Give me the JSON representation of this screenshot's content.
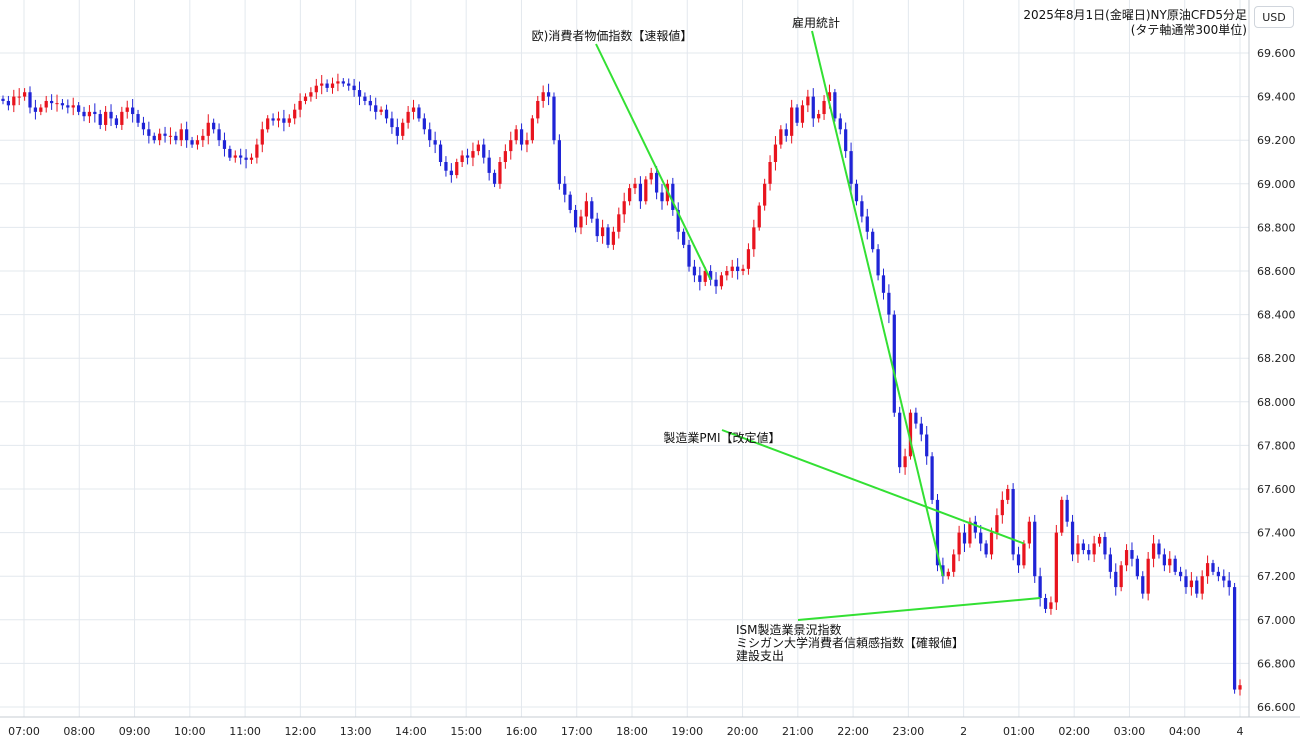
{
  "chart_data": {
    "type": "candlestick",
    "title": "2025年8月1日(金曜日)NY原油CFD5分足",
    "subtitle": "(タテ軸通常300単位)",
    "currency": "USD",
    "ylim": [
      66.6,
      69.6
    ],
    "yticks": [
      "69.600",
      "69.400",
      "69.200",
      "69.000",
      "68.800",
      "68.600",
      "68.400",
      "68.200",
      "68.000",
      "67.800",
      "67.600",
      "67.400",
      "67.200",
      "67.000",
      "66.800",
      "66.600"
    ],
    "xticks": [
      "07:00",
      "08:00",
      "09:00",
      "10:00",
      "11:00",
      "12:00",
      "13:00",
      "14:00",
      "15:00",
      "16:00",
      "17:00",
      "18:00",
      "19:00",
      "20:00",
      "21:00",
      "22:00",
      "23:00",
      "2",
      "01:00",
      "02:00",
      "03:00",
      "04:00",
      "4"
    ],
    "up_color": "#e8141e",
    "down_color": "#1f24d6",
    "annotation_color": "#33e033",
    "annotations": [
      {
        "lines": [
          "欧)消費者物価指数【速報値】"
        ],
        "target_time": "17:55"
      },
      {
        "lines": [
          "雇用統計"
        ],
        "target_time": "21:30"
      },
      {
        "lines": [
          "製造業PMI【改定値】"
        ],
        "target_time": "22:45"
      },
      {
        "lines": [
          "ISM製造業景況指数",
          "ミシガン大学消費者信頼感指数【確報値】",
          "建設支出"
        ],
        "target_time": "23:00"
      }
    ],
    "series_close": [
      69.38,
      69.36,
      69.4,
      69.4,
      69.42,
      69.35,
      69.33,
      69.35,
      69.38,
      69.37,
      69.37,
      69.36,
      69.35,
      69.36,
      69.33,
      69.31,
      69.33,
      69.32,
      69.27,
      69.33,
      69.3,
      69.27,
      69.33,
      69.35,
      69.32,
      69.28,
      69.25,
      69.22,
      69.2,
      69.23,
      69.22,
      69.22,
      69.2,
      69.25,
      69.2,
      69.18,
      69.2,
      69.22,
      69.28,
      69.25,
      69.2,
      69.16,
      69.12,
      69.13,
      69.12,
      69.11,
      69.12,
      69.18,
      69.25,
      69.3,
      69.29,
      69.3,
      69.28,
      69.3,
      69.34,
      69.38,
      69.4,
      69.42,
      69.45,
      69.46,
      69.44,
      69.46,
      69.47,
      69.46,
      69.45,
      69.43,
      69.4,
      69.38,
      69.36,
      69.33,
      69.34,
      69.3,
      69.26,
      69.22,
      69.28,
      69.33,
      69.35,
      69.3,
      69.25,
      69.2,
      69.18,
      69.1,
      69.06,
      69.04,
      69.1,
      69.13,
      69.12,
      69.15,
      69.18,
      69.12,
      69.05,
      69.0,
      69.1,
      69.15,
      69.2,
      69.25,
      69.18,
      69.2,
      69.3,
      69.38,
      69.42,
      69.4,
      69.2,
      69.0,
      68.95,
      68.88,
      68.8,
      68.85,
      68.92,
      68.84,
      68.76,
      68.8,
      68.72,
      68.78,
      68.86,
      68.92,
      68.98,
      69.0,
      68.92,
      69.02,
      69.05,
      68.96,
      68.92,
      69.0,
      68.88,
      68.78,
      68.72,
      68.62,
      68.58,
      68.55,
      68.6,
      68.56,
      68.53,
      68.58,
      68.6,
      68.62,
      68.6,
      68.61,
      68.7,
      68.8,
      68.9,
      69.0,
      69.1,
      69.18,
      69.25,
      69.22,
      69.35,
      69.28,
      69.36,
      69.4,
      69.3,
      69.32,
      69.38,
      69.42,
      69.3,
      69.25,
      69.15,
      69.0,
      68.92,
      68.85,
      68.78,
      68.7,
      68.58,
      68.5,
      68.4,
      67.95,
      67.7,
      67.75,
      67.95,
      67.9,
      67.85,
      67.75,
      67.55,
      67.25,
      67.2,
      67.22,
      67.3,
      67.4,
      67.35,
      67.45,
      67.4,
      67.35,
      67.3,
      67.4,
      67.48,
      67.55,
      67.6,
      67.3,
      67.25,
      67.35,
      67.45,
      67.2,
      67.1,
      67.05,
      67.08,
      67.4,
      67.55,
      67.45,
      67.3,
      67.35,
      67.32,
      67.3,
      67.35,
      67.38,
      67.3,
      67.22,
      67.15,
      67.25,
      67.32,
      67.28,
      67.2,
      67.12,
      67.28,
      67.35,
      67.3,
      67.25,
      67.28,
      67.22,
      67.2,
      67.15,
      67.18,
      67.12,
      67.2,
      67.26,
      67.22,
      67.2,
      67.18,
      67.15,
      66.68,
      66.7
    ]
  }
}
